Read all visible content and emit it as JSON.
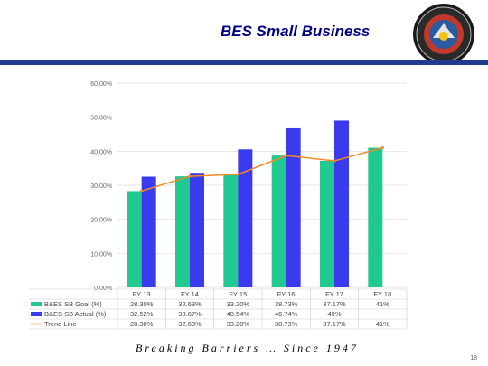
{
  "header": {
    "title": "BES Small Business"
  },
  "footer": {
    "tagline": "Breaking Barriers … Since 1947",
    "page_number": "18"
  },
  "colors": {
    "goal": "#1fc98f",
    "actual": "#3a3aee",
    "trend": "#f08a24",
    "rule": "#1f3a93",
    "title": "#000080"
  },
  "chart_data": {
    "type": "bar",
    "title": "",
    "xlabel": "",
    "ylabel": "",
    "ylim": [
      0,
      60
    ],
    "y_ticks": [
      "0.00%",
      "10.00%",
      "20.00%",
      "30.00%",
      "40.00%",
      "50.00%",
      "60.00%"
    ],
    "categories": [
      "FY 13",
      "FY 14",
      "FY 15",
      "FY 16",
      "FY 17",
      "FY 18"
    ],
    "grid": true,
    "legend": "table-bottom",
    "series": [
      {
        "name": "B&ES SB Goal (%)",
        "type": "bar",
        "values": [
          28.3,
          32.63,
          33.2,
          38.73,
          37.17,
          41
        ],
        "labels": [
          "28.30%",
          "32.63%",
          "33.20%",
          "38.73%",
          "37.17%",
          "41%"
        ]
      },
      {
        "name": "B&ES SB Actual (%)",
        "type": "bar",
        "values": [
          32.52,
          33.67,
          40.54,
          46.74,
          49,
          null
        ],
        "labels": [
          "32.52%",
          "33.67%",
          "40.54%",
          "46.74%",
          "49%",
          ""
        ]
      },
      {
        "name": "Trend Line",
        "type": "line",
        "values": [
          28.3,
          32.63,
          33.2,
          38.73,
          37.17,
          41
        ],
        "labels": [
          "28.30%",
          "32.63%",
          "33.20%",
          "38.73%",
          "37.17%",
          "41%"
        ]
      }
    ]
  }
}
